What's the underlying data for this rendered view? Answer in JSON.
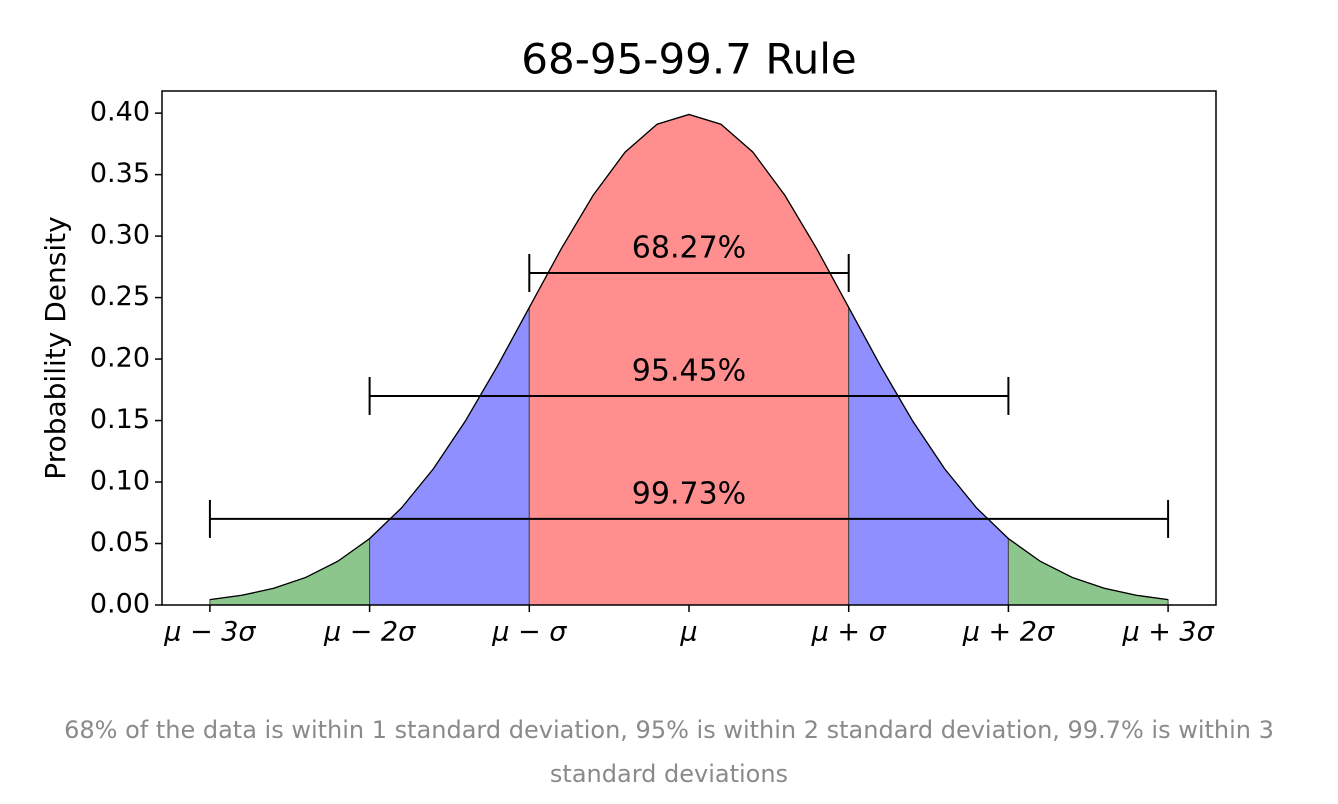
{
  "chart_data": {
    "type": "area",
    "title": "68-95-99.7 Rule",
    "y_label": "Probability Density",
    "x": [
      -3,
      -2.8,
      -2.6,
      -2.4,
      -2.2,
      -2,
      -1.8,
      -1.6,
      -1.4,
      -1.2,
      -1,
      -0.8,
      -0.6,
      -0.4,
      -0.2,
      0,
      0.2,
      0.4,
      0.6,
      0.8,
      1,
      1.2,
      1.4,
      1.6,
      1.8,
      2,
      2.2,
      2.4,
      2.6,
      2.8,
      3
    ],
    "values": [
      0.0044,
      0.0079,
      0.0136,
      0.0224,
      0.0355,
      0.054,
      0.079,
      0.1109,
      0.1497,
      0.1942,
      0.242,
      0.2897,
      0.3332,
      0.3683,
      0.391,
      0.3989,
      0.391,
      0.3683,
      0.3332,
      0.2897,
      0.242,
      0.1942,
      0.1497,
      0.1109,
      0.079,
      0.054,
      0.0355,
      0.0224,
      0.0136,
      0.0079,
      0.0044
    ],
    "color": "#000000",
    "regions": [
      {
        "from": -3,
        "to": -2,
        "color": "#8cc68c"
      },
      {
        "from": -2,
        "to": -1,
        "color": "#8f8fff"
      },
      {
        "from": -1,
        "to": 1,
        "color": "#ff8f8f"
      },
      {
        "from": 1,
        "to": 2,
        "color": "#8f8fff"
      },
      {
        "from": 2,
        "to": 3,
        "color": "#8cc68c"
      }
    ],
    "brackets": [
      {
        "text": "68.27%",
        "from": -1,
        "to": 1,
        "y": 0.27
      },
      {
        "text": "95.45%",
        "from": -2,
        "to": 2,
        "y": 0.17
      },
      {
        "text": "99.73%",
        "from": -3,
        "to": 3,
        "y": 0.07
      }
    ],
    "xlim": [
      -3.3,
      3.3
    ],
    "xticks": [
      {
        "value": -3,
        "label": "μ − 3σ"
      },
      {
        "value": -2,
        "label": "μ − 2σ"
      },
      {
        "value": -1,
        "label": "μ − σ"
      },
      {
        "value": 0,
        "label": "μ"
      },
      {
        "value": 1,
        "label": "μ + σ"
      },
      {
        "value": 2,
        "label": "μ + 2σ"
      },
      {
        "value": 3,
        "label": "μ + 3σ"
      }
    ],
    "ylim": [
      0,
      0.418
    ],
    "yticks": [
      {
        "value": 0,
        "label": "0.00"
      },
      0.05,
      {
        "value": 0.1,
        "label": "0.10"
      },
      0.15,
      {
        "value": 0.2,
        "label": "0.20"
      },
      0.25,
      {
        "value": 0.3,
        "label": "0.30"
      },
      0.35,
      {
        "value": 0.4,
        "label": "0.40"
      }
    ]
  },
  "caption": "68% of the data is within 1 standard deviation, 95% is within 2 standard deviation, 99.7% is within 3 standard deviations"
}
